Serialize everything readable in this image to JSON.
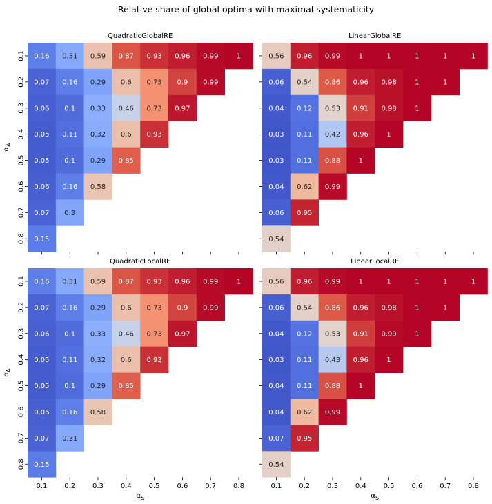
{
  "title": "Relative share of global optima with maximal systematicity",
  "chart_data": [
    {
      "type": "heatmap",
      "title": "QuadraticGlobalRE",
      "x_tick_labels": [
        "0.1",
        "0.2",
        "0.3",
        "0.4",
        "0.5",
        "0.6",
        "0.7",
        "0.8"
      ],
      "y_tick_labels": [
        "0.1",
        "0.2",
        "0.3",
        "0.4",
        "0.5",
        "0.6",
        "0.7",
        "0.8"
      ],
      "xlabel": "",
      "ylabel": "α_A",
      "colormap": "coolwarm",
      "vmin": 0,
      "vmax": 1,
      "values": [
        [
          0.16,
          0.31,
          0.59,
          0.87,
          0.93,
          0.96,
          0.99,
          1
        ],
        [
          0.07,
          0.16,
          0.29,
          0.6,
          0.73,
          0.9,
          0.99,
          null
        ],
        [
          0.06,
          0.1,
          0.33,
          0.46,
          0.73,
          0.97,
          null,
          null
        ],
        [
          0.05,
          0.11,
          0.32,
          0.6,
          0.93,
          null,
          null,
          null
        ],
        [
          0.05,
          0.1,
          0.29,
          0.85,
          null,
          null,
          null,
          null
        ],
        [
          0.06,
          0.16,
          0.58,
          null,
          null,
          null,
          null,
          null
        ],
        [
          0.07,
          0.3,
          null,
          null,
          null,
          null,
          null,
          null
        ],
        [
          0.15,
          null,
          null,
          null,
          null,
          null,
          null,
          null
        ]
      ]
    },
    {
      "type": "heatmap",
      "title": "LinearGlobalRE",
      "x_tick_labels": [
        "0.1",
        "0.2",
        "0.3",
        "0.4",
        "0.5",
        "0.6",
        "0.7",
        "0.8"
      ],
      "y_tick_labels": [
        "0.1",
        "0.2",
        "0.3",
        "0.4",
        "0.5",
        "0.6",
        "0.7",
        "0.8"
      ],
      "xlabel": "",
      "ylabel": "",
      "colormap": "coolwarm",
      "vmin": 0,
      "vmax": 1,
      "values": [
        [
          0.56,
          0.96,
          0.99,
          1,
          1,
          1,
          1,
          1
        ],
        [
          0.06,
          0.54,
          0.86,
          0.96,
          0.98,
          1,
          1,
          null
        ],
        [
          0.04,
          0.12,
          0.53,
          0.91,
          0.98,
          1,
          null,
          null
        ],
        [
          0.03,
          0.11,
          0.42,
          0.96,
          1,
          null,
          null,
          null
        ],
        [
          0.03,
          0.11,
          0.88,
          1,
          null,
          null,
          null,
          null
        ],
        [
          0.04,
          0.62,
          0.99,
          null,
          null,
          null,
          null,
          null
        ],
        [
          0.06,
          0.95,
          null,
          null,
          null,
          null,
          null,
          null
        ],
        [
          0.54,
          null,
          null,
          null,
          null,
          null,
          null,
          null
        ]
      ]
    },
    {
      "type": "heatmap",
      "title": "QuadraticLocalRE",
      "x_tick_labels": [
        "0.1",
        "0.2",
        "0.3",
        "0.4",
        "0.5",
        "0.6",
        "0.7",
        "0.8"
      ],
      "y_tick_labels": [
        "0.1",
        "0.2",
        "0.3",
        "0.4",
        "0.5",
        "0.6",
        "0.7",
        "0.8"
      ],
      "xlabel": "α_S",
      "ylabel": "α_A",
      "colormap": "coolwarm",
      "vmin": 0,
      "vmax": 1,
      "values": [
        [
          0.16,
          0.31,
          0.59,
          0.87,
          0.93,
          0.96,
          0.99,
          1
        ],
        [
          0.07,
          0.16,
          0.29,
          0.6,
          0.73,
          0.9,
          0.99,
          null
        ],
        [
          0.06,
          0.1,
          0.33,
          0.46,
          0.73,
          0.97,
          null,
          null
        ],
        [
          0.05,
          0.11,
          0.32,
          0.6,
          0.93,
          null,
          null,
          null
        ],
        [
          0.05,
          0.1,
          0.29,
          0.85,
          null,
          null,
          null,
          null
        ],
        [
          0.06,
          0.16,
          0.58,
          null,
          null,
          null,
          null,
          null
        ],
        [
          0.07,
          0.31,
          null,
          null,
          null,
          null,
          null,
          null
        ],
        [
          0.15,
          null,
          null,
          null,
          null,
          null,
          null,
          null
        ]
      ]
    },
    {
      "type": "heatmap",
      "title": "LinearLocalRE",
      "x_tick_labels": [
        "0.1",
        "0.2",
        "0.3",
        "0.4",
        "0.5",
        "0.6",
        "0.7",
        "0.8"
      ],
      "y_tick_labels": [
        "0.1",
        "0.2",
        "0.3",
        "0.4",
        "0.5",
        "0.6",
        "0.7",
        "0.8"
      ],
      "xlabel": "α_S",
      "ylabel": "",
      "colormap": "coolwarm",
      "vmin": 0,
      "vmax": 1,
      "values": [
        [
          0.56,
          0.96,
          0.99,
          1,
          1,
          1,
          1,
          1
        ],
        [
          0.06,
          0.54,
          0.86,
          0.96,
          0.98,
          1,
          1,
          null
        ],
        [
          0.04,
          0.12,
          0.53,
          0.91,
          0.99,
          1,
          null,
          null
        ],
        [
          0.03,
          0.11,
          0.43,
          0.96,
          1,
          null,
          null,
          null
        ],
        [
          0.04,
          0.11,
          0.88,
          1,
          null,
          null,
          null,
          null
        ],
        [
          0.04,
          0.62,
          0.99,
          null,
          null,
          null,
          null,
          null
        ],
        [
          0.07,
          0.95,
          null,
          null,
          null,
          null,
          null,
          null
        ],
        [
          0.54,
          null,
          null,
          null,
          null,
          null,
          null,
          null
        ]
      ]
    }
  ]
}
